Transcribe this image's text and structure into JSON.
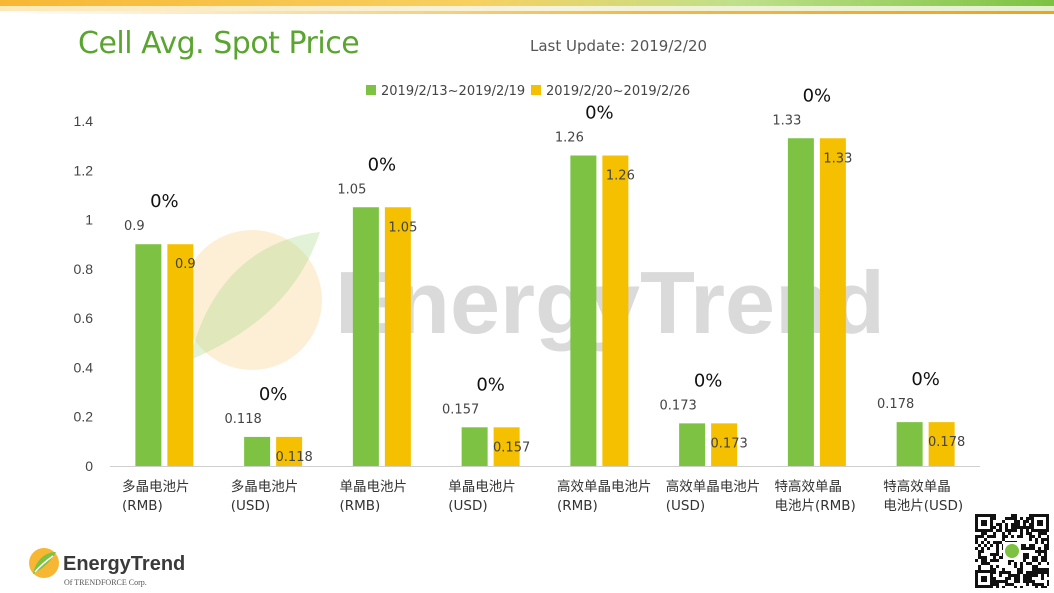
{
  "header": {
    "title": "Cell Avg. Spot Price",
    "last_update": "Last Update: 2019/2/20"
  },
  "branding": {
    "logo_text": "EnergyTrend",
    "logo_subtext": "Of TRENDFORCE Corp.",
    "watermark": "EnergyTrend"
  },
  "colors": {
    "series1": "#7dc242",
    "series2": "#f5c000",
    "title": "#5aa52f"
  },
  "chart_data": {
    "type": "bar",
    "categories": [
      [
        "多晶电池片",
        "(RMB)"
      ],
      [
        "多晶电池片",
        "(USD)"
      ],
      [
        "单晶电池片",
        "(RMB)"
      ],
      [
        "单晶电池片",
        "(USD)"
      ],
      [
        "高效单晶电池片",
        "(RMB)"
      ],
      [
        "高效单晶电池片",
        "(USD)"
      ],
      [
        "特高效单晶",
        "电池片(RMB)"
      ],
      [
        "特高效单晶",
        "电池片(USD)"
      ]
    ],
    "series": [
      {
        "name": "2019/2/13~2019/2/19",
        "values": [
          0.9,
          0.118,
          1.05,
          0.157,
          1.26,
          0.173,
          1.33,
          0.178
        ]
      },
      {
        "name": "2019/2/20~2019/2/26",
        "values": [
          0.9,
          0.118,
          1.05,
          0.157,
          1.26,
          0.173,
          1.33,
          0.178
        ]
      }
    ],
    "change_labels": [
      "0%",
      "0%",
      "0%",
      "0%",
      "0%",
      "0%",
      "0%",
      "0%"
    ],
    "ylim": [
      0,
      1.4
    ],
    "yticks": [
      0,
      0.2,
      0.4,
      0.6,
      0.8,
      1,
      1.2,
      1.4
    ],
    "legend_position": "top-center",
    "grid": false
  }
}
